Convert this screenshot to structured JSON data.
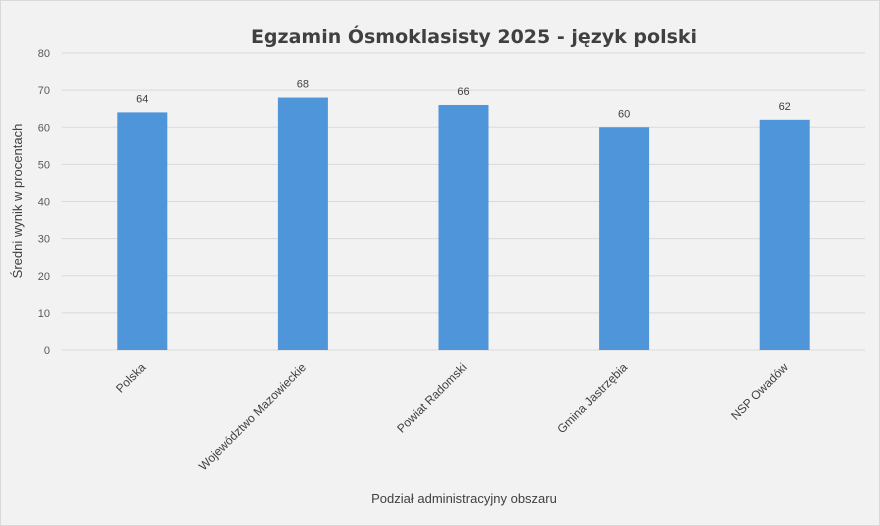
{
  "chart_data": {
    "type": "bar",
    "title": "Egzamin Ósmoklasisty 2025 - język polski",
    "xlabel": "Podział administracyjny obszaru",
    "ylabel": "Średni wynik w procentach",
    "categories": [
      "Polska",
      "Województwo Mazowieckie",
      "Powiat Radomski",
      "Gmina Jastrzębia",
      "NSP Owadów"
    ],
    "values": [
      64,
      68,
      66,
      60,
      62
    ],
    "ylim": [
      0,
      80
    ],
    "yticks": [
      0,
      10,
      20,
      30,
      40,
      50,
      60,
      70,
      80
    ],
    "grid": true,
    "legend": "none",
    "bar_color": "#4e95d9"
  }
}
